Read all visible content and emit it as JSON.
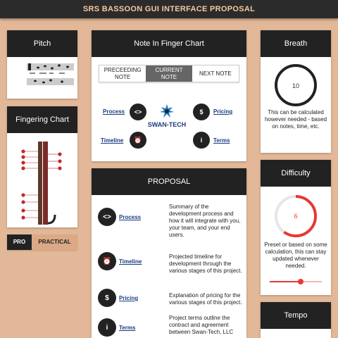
{
  "header": {
    "title": "SRS BASSOON GUI INTERFACE PROPOSAL"
  },
  "pitch": {
    "title": "Pitch"
  },
  "fingering": {
    "title": "Fingering Chart",
    "mode_pro": "PRO",
    "mode_practical": "PRACTICAL"
  },
  "note_chart": {
    "title": "Note In Finger Chart",
    "tabs": [
      {
        "label": "PRECEEDING NOTE"
      },
      {
        "label": "CURRENT NOTE"
      },
      {
        "label": "NEXT NOTE"
      }
    ],
    "links": {
      "process": "Process",
      "pricing": "Pricing",
      "timeline": "Timeline",
      "terms": "Terms"
    },
    "logo_text": "SWAN-TECH"
  },
  "proposal": {
    "title": "PROPOSAL",
    "items": [
      {
        "label": "Process",
        "icon": "code-icon",
        "desc": "Summary of the development process and how it will integrate with you, your team, and your end users."
      },
      {
        "label": "Timeline",
        "icon": "alarm-clock-icon",
        "desc": "Projected timeline for development through the various stages of this project."
      },
      {
        "label": "Pricing",
        "icon": "dollar-icon",
        "desc": "Explanation of pricing for the various stages of this project."
      },
      {
        "label": "Terms",
        "icon": "info-icon",
        "desc": "Project terms outline the contract and agreement between Swan-Tech, LLC"
      }
    ]
  },
  "breath": {
    "title": "Breath",
    "value": "10",
    "desc": "This can be calculated however needed - based on notes, time, etc."
  },
  "difficulty": {
    "title": "Difficulty",
    "value": "6",
    "level": 0.6,
    "desc": "Preset or based on some calculation, this can stay updated whenever needed.",
    "slider_level": 0.6,
    "accent": "#e53935"
  },
  "tempo": {
    "title": "Tempo"
  }
}
